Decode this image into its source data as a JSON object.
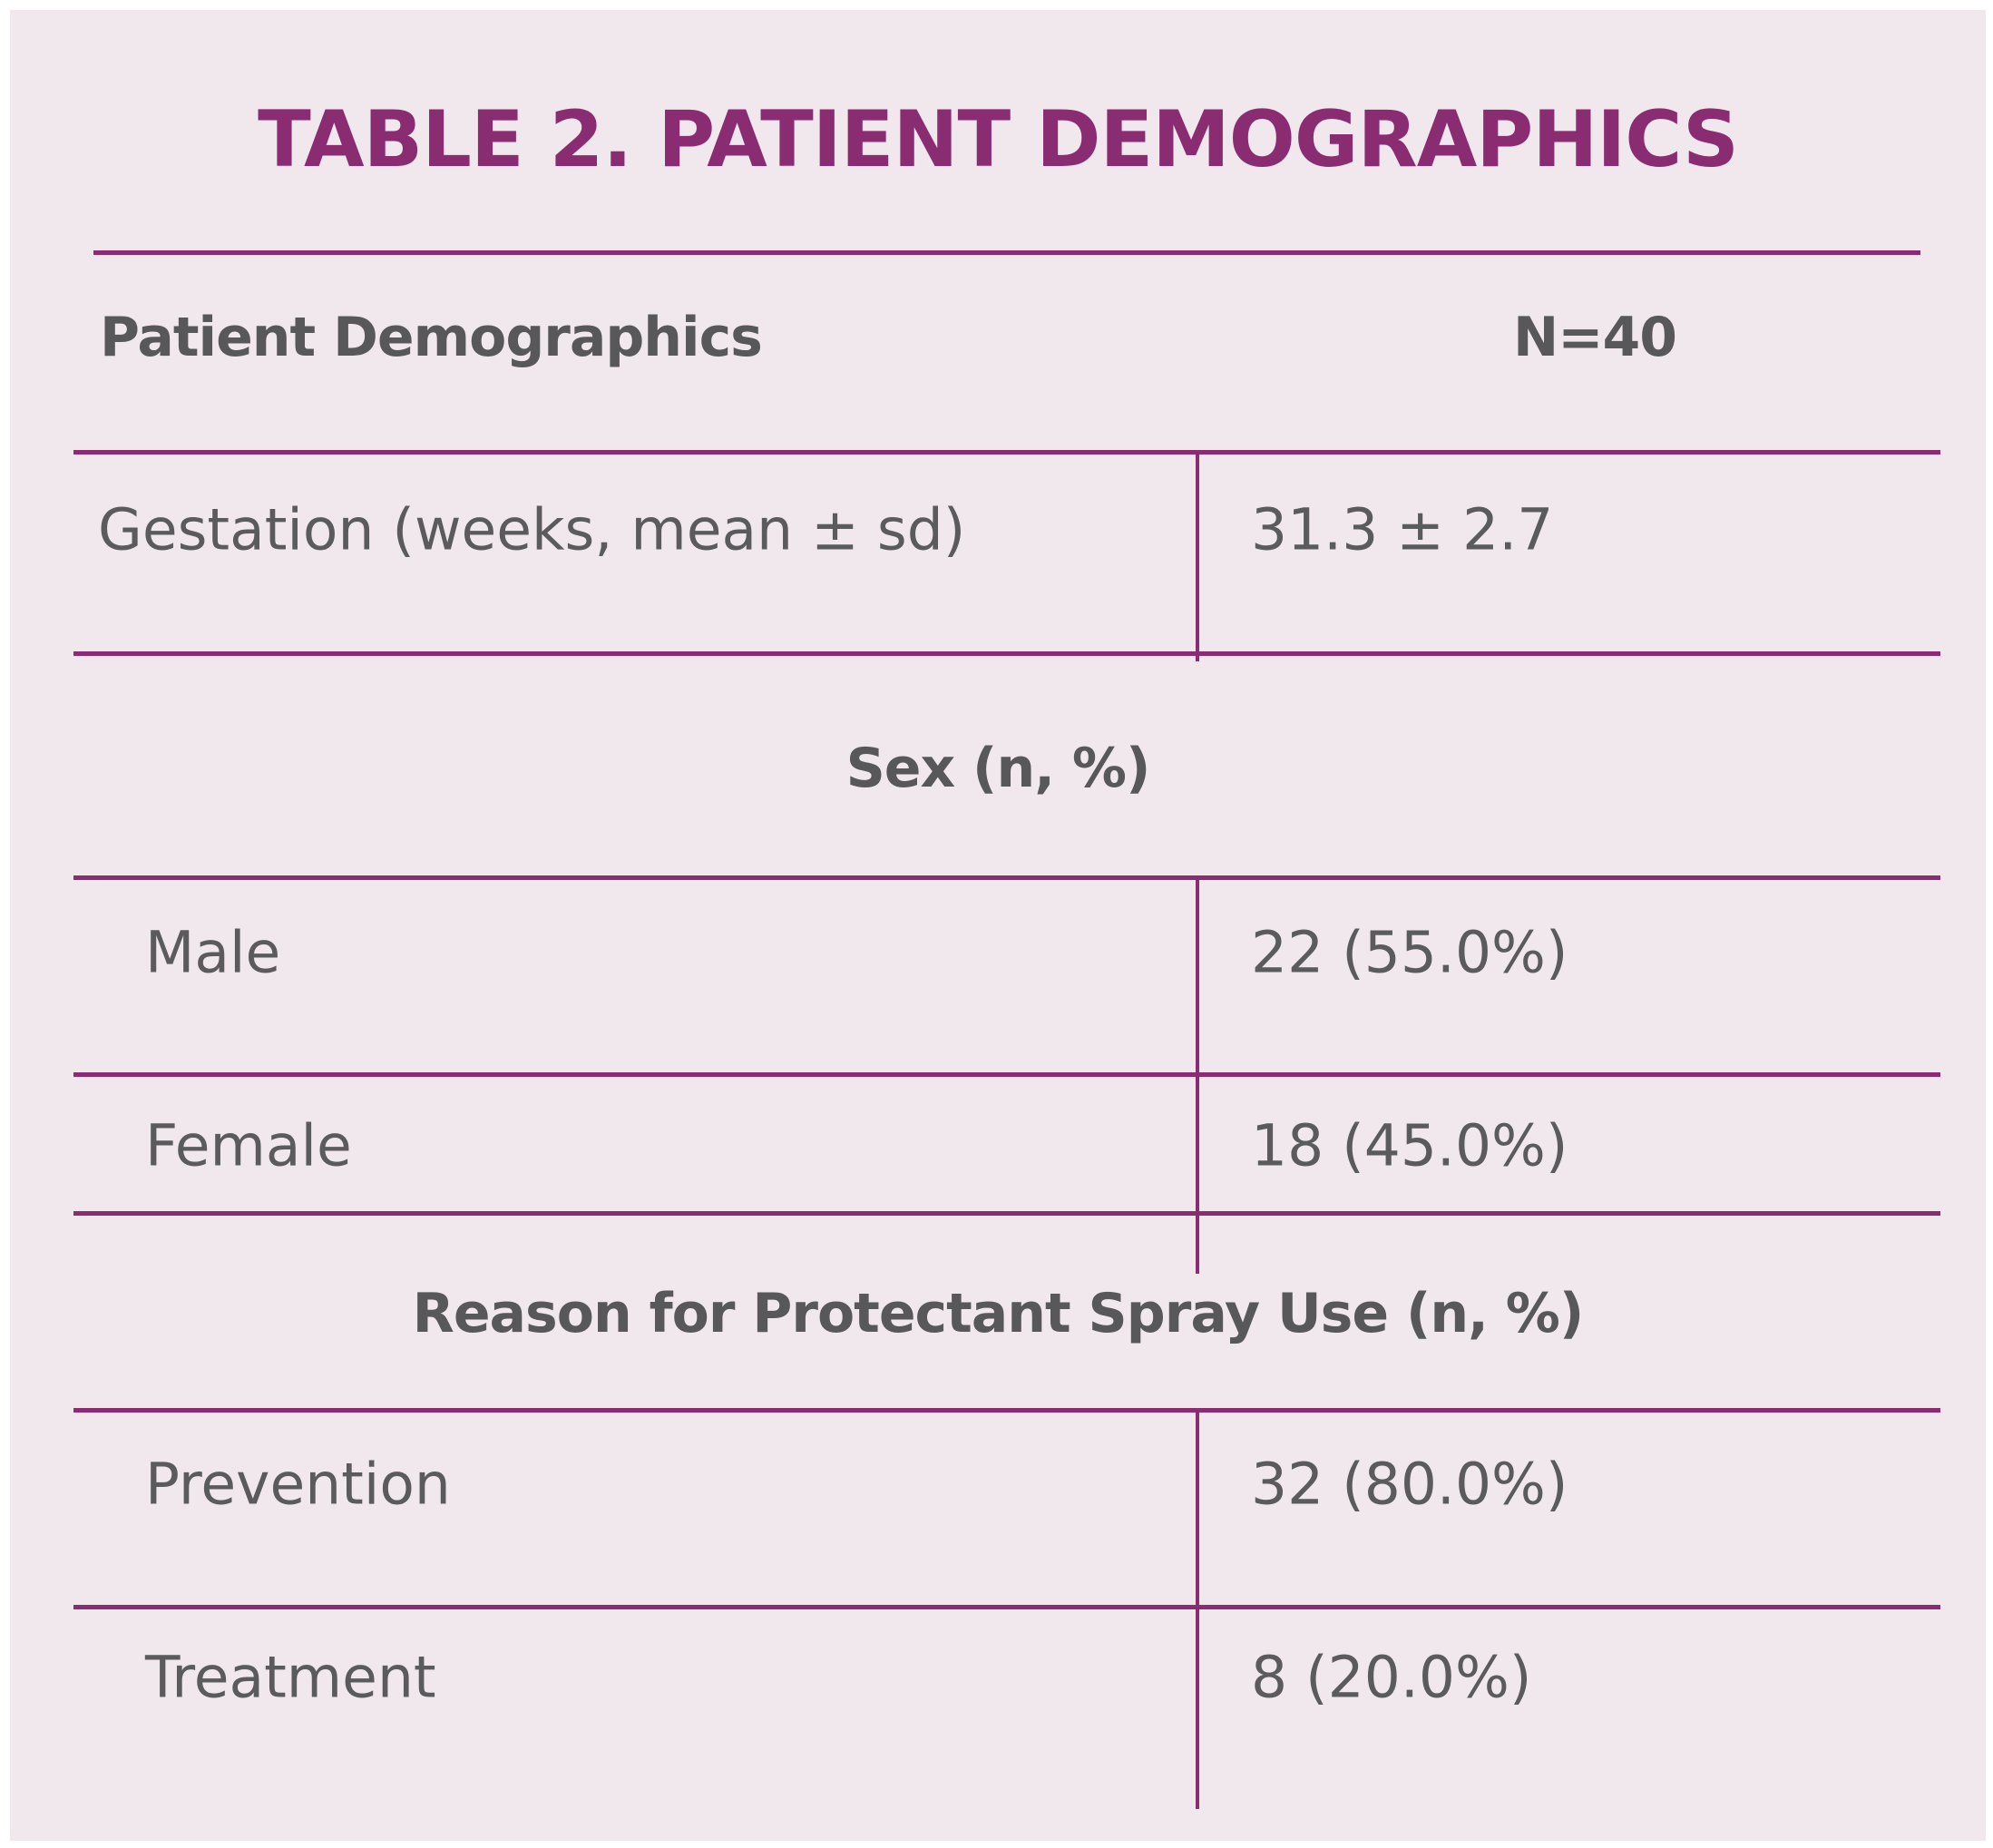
{
  "title": "TABLE 2. PATIENT DEMOGRAPHICS",
  "header": {
    "label": "Patient Demographics",
    "value": "N=40"
  },
  "gestation": {
    "label": "Gestation (weeks, mean ± sd)",
    "value": "31.3 ± 2.7"
  },
  "sex": {
    "heading": "Sex (n, %)",
    "rows": [
      {
        "label": "Male",
        "value": "22 (55.0%)"
      },
      {
        "label": "Female",
        "value": "18 (45.0%)"
      }
    ]
  },
  "reason": {
    "heading": "Reason for Protectant Spray Use (n, %)",
    "rows": [
      {
        "label": "Prevention",
        "value": "32 (80.0%)"
      },
      {
        "label": "Treatment",
        "value": "8 (20.0%)"
      }
    ]
  },
  "colors": {
    "accent": "#8a2c72",
    "background": "#f1e8ed",
    "text": "#58585b"
  }
}
